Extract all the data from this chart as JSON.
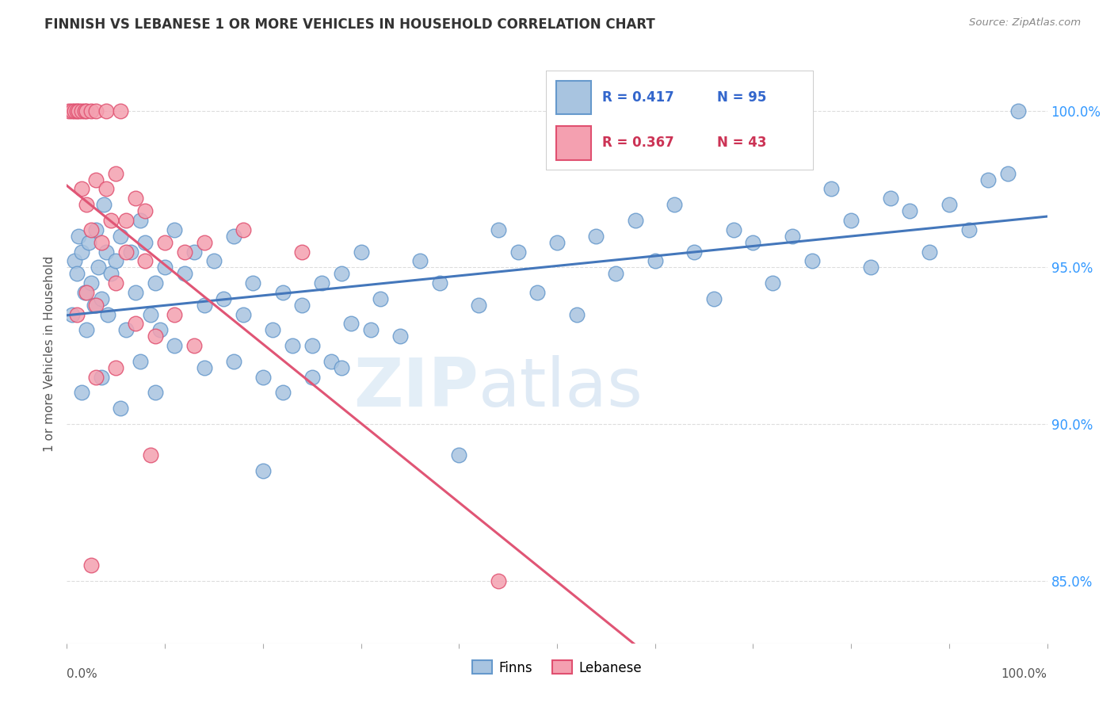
{
  "title": "FINNISH VS LEBANESE 1 OR MORE VEHICLES IN HOUSEHOLD CORRELATION CHART",
  "source": "Source: ZipAtlas.com",
  "ylabel": "1 or more Vehicles in Household",
  "ytick_values": [
    85.0,
    90.0,
    95.0,
    100.0
  ],
  "xmin": 0.0,
  "xmax": 100.0,
  "ymin": 83.0,
  "ymax": 101.5,
  "legend_finns_label": "Finns",
  "legend_lebanese_label": "Lebanese",
  "finns_color": "#a8c4e0",
  "lebanese_color": "#f4a0b0",
  "finns_edge_color": "#6699cc",
  "lebanese_edge_color": "#e05070",
  "trend_finns_color": "#4477bb",
  "trend_lebanese_color": "#e05575",
  "finns_scatter": [
    [
      0.5,
      93.5
    ],
    [
      0.8,
      95.2
    ],
    [
      1.0,
      94.8
    ],
    [
      1.2,
      96.0
    ],
    [
      1.5,
      95.5
    ],
    [
      1.8,
      94.2
    ],
    [
      2.0,
      93.0
    ],
    [
      2.2,
      95.8
    ],
    [
      2.5,
      94.5
    ],
    [
      2.8,
      93.8
    ],
    [
      3.0,
      96.2
    ],
    [
      3.2,
      95.0
    ],
    [
      3.5,
      94.0
    ],
    [
      3.8,
      97.0
    ],
    [
      4.0,
      95.5
    ],
    [
      4.2,
      93.5
    ],
    [
      4.5,
      94.8
    ],
    [
      5.0,
      95.2
    ],
    [
      5.5,
      96.0
    ],
    [
      6.0,
      93.0
    ],
    [
      6.5,
      95.5
    ],
    [
      7.0,
      94.2
    ],
    [
      7.5,
      96.5
    ],
    [
      8.0,
      95.8
    ],
    [
      8.5,
      93.5
    ],
    [
      9.0,
      94.5
    ],
    [
      9.5,
      93.0
    ],
    [
      10.0,
      95.0
    ],
    [
      11.0,
      96.2
    ],
    [
      12.0,
      94.8
    ],
    [
      13.0,
      95.5
    ],
    [
      14.0,
      93.8
    ],
    [
      15.0,
      95.2
    ],
    [
      16.0,
      94.0
    ],
    [
      17.0,
      96.0
    ],
    [
      18.0,
      93.5
    ],
    [
      19.0,
      94.5
    ],
    [
      20.0,
      88.5
    ],
    [
      21.0,
      93.0
    ],
    [
      22.0,
      94.2
    ],
    [
      23.0,
      92.5
    ],
    [
      24.0,
      93.8
    ],
    [
      25.0,
      91.5
    ],
    [
      26.0,
      94.5
    ],
    [
      27.0,
      92.0
    ],
    [
      28.0,
      94.8
    ],
    [
      29.0,
      93.2
    ],
    [
      30.0,
      95.5
    ],
    [
      32.0,
      94.0
    ],
    [
      34.0,
      92.8
    ],
    [
      36.0,
      95.2
    ],
    [
      38.0,
      94.5
    ],
    [
      40.0,
      89.0
    ],
    [
      42.0,
      93.8
    ],
    [
      44.0,
      96.2
    ],
    [
      46.0,
      95.5
    ],
    [
      48.0,
      94.2
    ],
    [
      50.0,
      95.8
    ],
    [
      52.0,
      93.5
    ],
    [
      54.0,
      96.0
    ],
    [
      56.0,
      94.8
    ],
    [
      58.0,
      96.5
    ],
    [
      60.0,
      95.2
    ],
    [
      62.0,
      97.0
    ],
    [
      64.0,
      95.5
    ],
    [
      66.0,
      94.0
    ],
    [
      68.0,
      96.2
    ],
    [
      70.0,
      95.8
    ],
    [
      72.0,
      94.5
    ],
    [
      74.0,
      96.0
    ],
    [
      76.0,
      95.2
    ],
    [
      78.0,
      97.5
    ],
    [
      80.0,
      96.5
    ],
    [
      82.0,
      95.0
    ],
    [
      84.0,
      97.2
    ],
    [
      86.0,
      96.8
    ],
    [
      88.0,
      95.5
    ],
    [
      90.0,
      97.0
    ],
    [
      92.0,
      96.2
    ],
    [
      94.0,
      97.8
    ],
    [
      96.0,
      98.0
    ],
    [
      97.0,
      100.0
    ],
    [
      1.5,
      91.0
    ],
    [
      3.5,
      91.5
    ],
    [
      5.5,
      90.5
    ],
    [
      7.5,
      92.0
    ],
    [
      9.0,
      91.0
    ],
    [
      11.0,
      92.5
    ],
    [
      14.0,
      91.8
    ],
    [
      17.0,
      92.0
    ],
    [
      20.0,
      91.5
    ],
    [
      22.0,
      91.0
    ],
    [
      25.0,
      92.5
    ],
    [
      28.0,
      91.8
    ],
    [
      31.0,
      93.0
    ]
  ],
  "lebanese_scatter": [
    [
      0.2,
      100.0
    ],
    [
      0.5,
      100.0
    ],
    [
      0.8,
      100.0
    ],
    [
      1.0,
      100.0
    ],
    [
      1.2,
      100.0
    ],
    [
      1.5,
      100.0
    ],
    [
      1.8,
      100.0
    ],
    [
      2.0,
      100.0
    ],
    [
      2.5,
      100.0
    ],
    [
      3.0,
      100.0
    ],
    [
      4.0,
      100.0
    ],
    [
      5.5,
      100.0
    ],
    [
      1.5,
      97.5
    ],
    [
      2.0,
      97.0
    ],
    [
      3.0,
      97.8
    ],
    [
      4.0,
      97.5
    ],
    [
      5.0,
      98.0
    ],
    [
      6.0,
      96.5
    ],
    [
      7.0,
      97.2
    ],
    [
      8.0,
      96.8
    ],
    [
      2.5,
      96.2
    ],
    [
      3.5,
      95.8
    ],
    [
      4.5,
      96.5
    ],
    [
      6.0,
      95.5
    ],
    [
      8.0,
      95.2
    ],
    [
      10.0,
      95.8
    ],
    [
      12.0,
      95.5
    ],
    [
      14.0,
      95.8
    ],
    [
      18.0,
      96.2
    ],
    [
      24.0,
      95.5
    ],
    [
      1.0,
      93.5
    ],
    [
      2.0,
      94.2
    ],
    [
      3.0,
      93.8
    ],
    [
      5.0,
      94.5
    ],
    [
      7.0,
      93.2
    ],
    [
      9.0,
      92.8
    ],
    [
      11.0,
      93.5
    ],
    [
      13.0,
      92.5
    ],
    [
      3.0,
      91.5
    ],
    [
      5.0,
      91.8
    ],
    [
      2.5,
      85.5
    ],
    [
      8.5,
      89.0
    ],
    [
      44.0,
      85.0
    ]
  ],
  "watermark_zip": "ZIP",
  "watermark_atlas": "atlas",
  "background_color": "#ffffff",
  "grid_color": "#dddddd"
}
